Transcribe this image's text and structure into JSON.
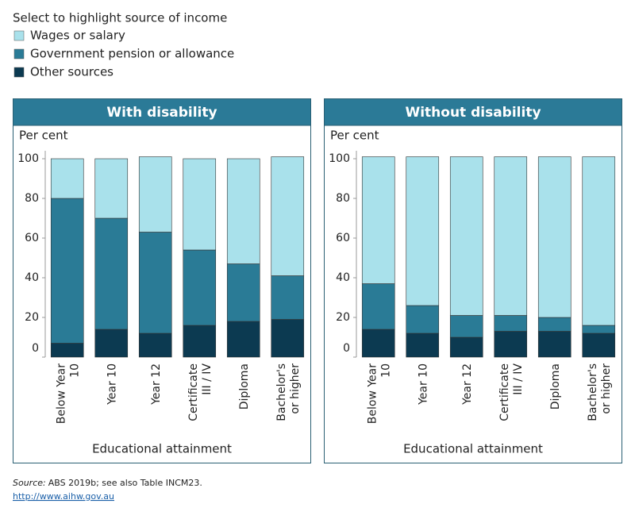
{
  "legend_title": "Select to highlight source of income",
  "source_label": "Source:",
  "source_text": "ABS 2019b; see also Table INCM23.",
  "url": "http://www.aihw.gov.au",
  "chart_data": [
    {
      "type": "stacked_bar",
      "title": "With disability",
      "ylabel": "Per cent",
      "xlabel": "Educational attainment",
      "categories": [
        "Below Year 10",
        "Year 10",
        "Year 12",
        "Certificate III / IV",
        "Diploma",
        "Bachelor's or higher"
      ],
      "series": [
        {
          "name": "Wages or salary",
          "color": "#a9e1eb",
          "values": [
            20,
            30,
            38,
            46,
            53,
            60
          ]
        },
        {
          "name": "Government pension or allowance",
          "color": "#2a7b96",
          "values": [
            73,
            56,
            51,
            38,
            29,
            22
          ]
        },
        {
          "name": "Other sources",
          "color": "#0c3a51",
          "values": [
            7,
            14,
            12,
            16,
            18,
            19
          ]
        }
      ],
      "ylim": [
        0,
        100
      ],
      "yticks": [
        0,
        20,
        40,
        60,
        80,
        100
      ]
    },
    {
      "type": "stacked_bar",
      "title": "Without disability",
      "ylabel": "Per cent",
      "xlabel": "Educational attainment",
      "categories": [
        "Below Year 10",
        "Year 10",
        "Year 12",
        "Certificate III / IV",
        "Diploma",
        "Bachelor's or higher"
      ],
      "series": [
        {
          "name": "Wages or salary",
          "color": "#a9e1eb",
          "values": [
            64,
            75,
            80,
            80,
            81,
            85
          ]
        },
        {
          "name": "Government pension or allowance",
          "color": "#2a7b96",
          "values": [
            23,
            14,
            11,
            8,
            7,
            4
          ]
        },
        {
          "name": "Other sources",
          "color": "#0c3a51",
          "values": [
            14,
            12,
            10,
            13,
            13,
            12
          ]
        }
      ],
      "ylim": [
        0,
        100
      ],
      "yticks": [
        0,
        20,
        40,
        60,
        80,
        100
      ]
    }
  ]
}
